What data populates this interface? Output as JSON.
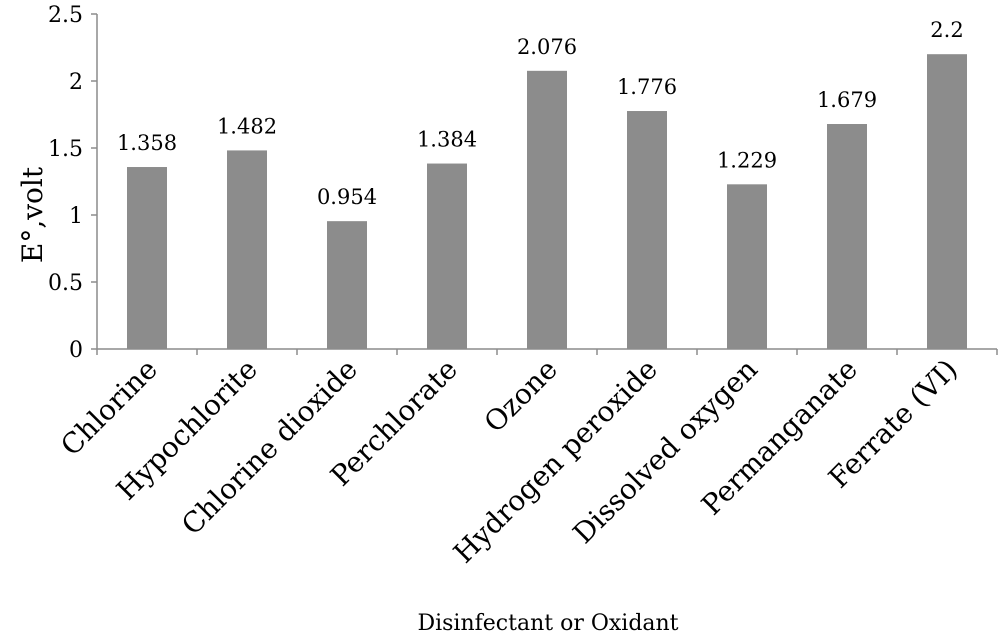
{
  "chart_data": {
    "type": "bar",
    "title": "",
    "xlabel": "Disinfectant or Oxidant",
    "ylabel": "E°,volt",
    "ylim": [
      0,
      2.5
    ],
    "y_ticks": [
      "0",
      "0.5",
      "1",
      "1.5",
      "2",
      "2.5"
    ],
    "grid": false,
    "categories": [
      "Chlorine",
      "Hypochlorite",
      "Chlorine dioxide",
      "Perchlorate",
      "Ozone",
      "Hydrogen peroxide",
      "Dissolved oxygen",
      "Permanganate",
      "Ferrate (VI)"
    ],
    "values": [
      1.358,
      1.482,
      0.954,
      1.384,
      2.076,
      1.776,
      1.229,
      1.679,
      2.2
    ],
    "value_labels": [
      "1.358",
      "1.482",
      "0.954",
      "1.384",
      "2.076",
      "1.776",
      "1.229",
      "1.679",
      "2.2"
    ],
    "bar_color": "#8c8c8c"
  }
}
